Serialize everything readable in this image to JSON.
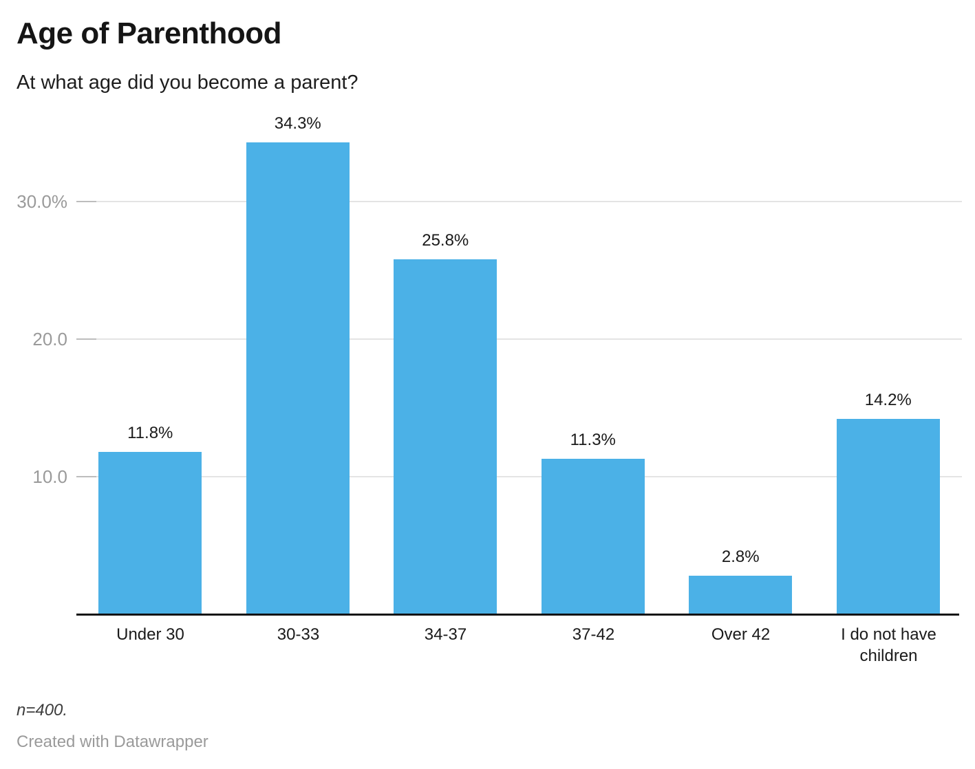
{
  "header": {
    "title": "Age of Parenthood",
    "subtitle": "At what age did you become a parent?"
  },
  "chart_data": {
    "type": "bar",
    "title": "Age of Parenthood",
    "subtitle": "At what age did you become a parent?",
    "categories": [
      "Under 30",
      "30-33",
      "34-37",
      "37-42",
      "Over 42",
      "I do not have children"
    ],
    "values": [
      11.8,
      34.3,
      25.8,
      11.3,
      2.8,
      14.2
    ],
    "value_labels": [
      "11.8%",
      "34.3%",
      "25.8%",
      "11.3%",
      "2.8%",
      "14.2%"
    ],
    "xlabel": "",
    "ylabel": "",
    "ylim": [
      0,
      35
    ],
    "y_ticks": [
      {
        "value": 10,
        "label": "10.0"
      },
      {
        "value": 20,
        "label": "20.0"
      },
      {
        "value": 30,
        "label": "30.0%"
      }
    ],
    "grid": true,
    "legend": "none",
    "bar_color": "#4BB1E7"
  },
  "footer": {
    "note": "n=400.",
    "attribution": "Created with Datawrapper"
  },
  "colors": {
    "bar": "#4BB1E7",
    "gridline": "#e4e4e4",
    "tick": "#bdbdbd",
    "axis_label": "#9a9a9a",
    "text": "#1a1a1a",
    "baseline": "#131313",
    "note": "#3d3d3d",
    "attribution": "#9a9a9a",
    "background": "#ffffff"
  }
}
